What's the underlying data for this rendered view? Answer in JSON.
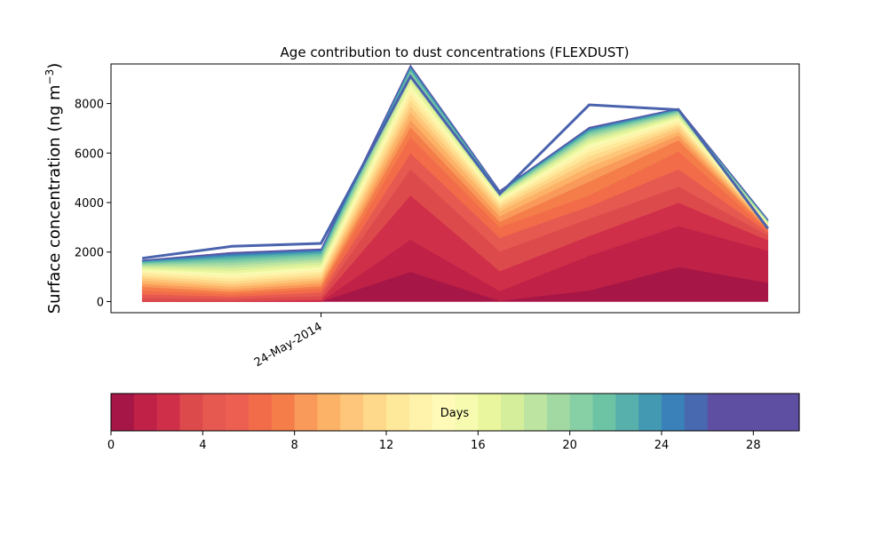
{
  "chart_data": [
    {
      "type": "area",
      "stacked": true,
      "title": "Age contribution to dust concentrations (FLEXDUST)",
      "ylabel_main": "Surface concentration (ng m",
      "ylabel_sup": "−3",
      "ylabel_close": ")",
      "xlabel": "",
      "ylim": [
        -450,
        9600
      ],
      "yticks": [
        0,
        2000,
        4000,
        6000,
        8000
      ],
      "xlim": [
        -0.35,
        7.35
      ],
      "xticks": [
        {
          "value": 2,
          "label": "24-May-2014"
        }
      ],
      "x": [
        0,
        1,
        2,
        3,
        4,
        5,
        6,
        7
      ],
      "top_outline": {
        "color": "#4a63ad",
        "values": [
          1750,
          2230,
          2350,
          9100,
          4350,
          7950,
          7750,
          2950
        ]
      },
      "layers": [
        {
          "color": "#a61646",
          "values": [
            0,
            0,
            0,
            1200,
            30,
            450,
            1400,
            760
          ]
        },
        {
          "color": "#bf2147",
          "values": [
            0,
            0,
            0,
            1300,
            400,
            1400,
            1650,
            1300
          ]
        },
        {
          "color": "#d02f49",
          "values": [
            0,
            0,
            80,
            1800,
            800,
            800,
            950,
            420
          ]
        },
        {
          "color": "#dd4a4c",
          "values": [
            150,
            100,
            150,
            1050,
            800,
            700,
            650,
            200
          ]
        },
        {
          "color": "#e65950",
          "values": [
            150,
            100,
            150,
            650,
            550,
            500,
            700,
            120
          ]
        },
        {
          "color": "#f26c4a",
          "values": [
            150,
            100,
            150,
            650,
            430,
            450,
            720,
            80
          ]
        },
        {
          "color": "#f47d4a",
          "values": [
            150,
            100,
            100,
            400,
            220,
            550,
            450,
            60
          ]
        },
        {
          "color": "#f99a5a",
          "values": [
            120,
            100,
            120,
            300,
            220,
            350,
            200,
            50
          ]
        },
        {
          "color": "#fdb367",
          "values": [
            120,
            100,
            120,
            300,
            200,
            250,
            150,
            40
          ]
        },
        {
          "color": "#fec67a",
          "values": [
            110,
            110,
            110,
            250,
            150,
            220,
            150,
            30
          ]
        },
        {
          "color": "#fed98b",
          "values": [
            100,
            110,
            110,
            250,
            120,
            200,
            120,
            30
          ]
        },
        {
          "color": "#fee89a",
          "values": [
            100,
            110,
            110,
            220,
            100,
            180,
            100,
            30
          ]
        },
        {
          "color": "#fff3ab",
          "values": [
            80,
            110,
            100,
            200,
            80,
            160,
            90,
            25
          ]
        },
        {
          "color": "#f7fbb0",
          "values": [
            70,
            110,
            100,
            180,
            70,
            140,
            80,
            25
          ]
        },
        {
          "color": "#e9f69d",
          "values": [
            60,
            110,
            100,
            150,
            60,
            120,
            70,
            20
          ]
        },
        {
          "color": "#d5ee9b",
          "values": [
            60,
            110,
            100,
            120,
            50,
            100,
            60,
            20
          ]
        },
        {
          "color": "#bde4a0",
          "values": [
            50,
            100,
            90,
            100,
            40,
            90,
            50,
            20
          ]
        },
        {
          "color": "#a2d9a3",
          "values": [
            40,
            100,
            90,
            90,
            35,
            80,
            45,
            15
          ]
        },
        {
          "color": "#87cfa4",
          "values": [
            40,
            90,
            80,
            80,
            30,
            70,
            40,
            15
          ]
        },
        {
          "color": "#6cc4a5",
          "values": [
            30,
            80,
            70,
            70,
            25,
            60,
            35,
            15
          ]
        },
        {
          "color": "#57b0ab",
          "values": [
            30,
            70,
            60,
            60,
            20,
            50,
            30,
            10
          ]
        },
        {
          "color": "#4399b2",
          "values": [
            25,
            60,
            50,
            50,
            20,
            40,
            25,
            10
          ]
        },
        {
          "color": "#3981b8",
          "values": [
            20,
            50,
            40,
            40,
            15,
            35,
            20,
            10
          ]
        },
        {
          "color": "#4868af",
          "values": [
            15,
            40,
            30,
            30,
            15,
            30,
            15,
            10
          ]
        },
        {
          "color": "#5e4fa2",
          "values": [
            10,
            30,
            20,
            20,
            10,
            20,
            10,
            10
          ]
        }
      ]
    },
    {
      "type": "colorbar",
      "label": "Days",
      "range": [
        0,
        30
      ],
      "ticks": [
        0,
        4,
        8,
        12,
        16,
        20,
        24,
        28
      ],
      "colors": [
        "#a61646",
        "#bf2147",
        "#d02f49",
        "#dd4a4c",
        "#e65950",
        "#ec5f51",
        "#f26c4a",
        "#f47d4a",
        "#f99a5a",
        "#fdb367",
        "#fec67a",
        "#fed98b",
        "#fee89a",
        "#fff3ab",
        "#fffab8",
        "#f7fbb0",
        "#e9f69d",
        "#d5ee9b",
        "#bde4a0",
        "#a2d9a3",
        "#87cfa4",
        "#6cc4a5",
        "#57b0ab",
        "#4399b2",
        "#3981b8",
        "#4868af",
        "#5e4fa2",
        "#5e4fa2",
        "#5e4fa2",
        "#5e4fa2"
      ]
    }
  ]
}
